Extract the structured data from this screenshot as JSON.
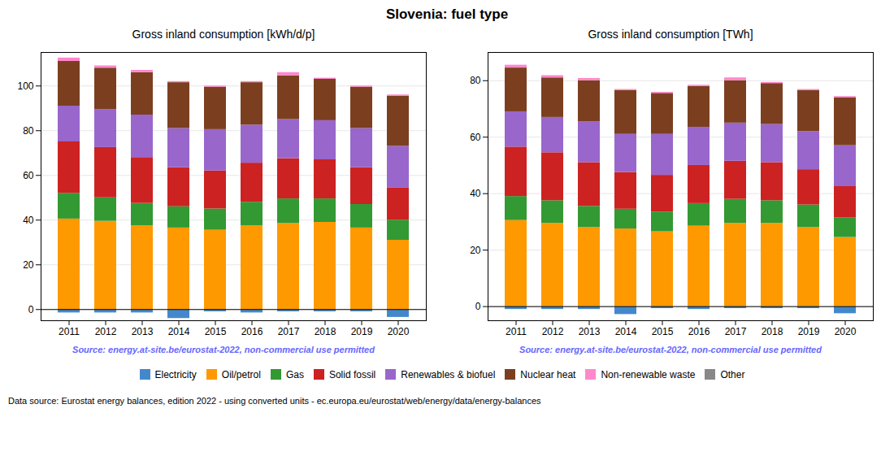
{
  "title": "Slovenia: fuel type",
  "legend": "bottom",
  "annotations": [
    "Data source: Eurostat energy balances, edition 2022 - using converted units - ec.europa.eu/eurostat/web/energy/data/energy-balances"
  ],
  "chart_data": [
    {
      "type": "bar",
      "stacked": true,
      "grid": true,
      "title": "Gross inland consumption [kWh/d/p]",
      "annotations": [
        {
          "text": "Source: energy.at-site.be/eurostat-2022, non-commercial use permitted",
          "color": "#6666ff"
        }
      ],
      "categories": [
        "2011",
        "2012",
        "2013",
        "2014",
        "2015",
        "2016",
        "2017",
        "2018",
        "2019",
        "2020"
      ],
      "ylim": [
        -5,
        115
      ],
      "yticks": [
        0,
        20,
        40,
        60,
        80,
        100
      ],
      "series": [
        {
          "name": "Electricity",
          "color": "#4488cc",
          "values": [
            -1.5,
            -1.5,
            -1.5,
            -4.0,
            -1.0,
            -1.5,
            -1.0,
            -1.0,
            -1.0,
            -3.5
          ]
        },
        {
          "name": "Oil/petrol",
          "color": "#ff9900",
          "values": [
            40.5,
            39.5,
            37.5,
            36.5,
            35.5,
            37.5,
            38.5,
            39.0,
            36.5,
            31.0
          ]
        },
        {
          "name": "Gas",
          "color": "#339933",
          "values": [
            11.5,
            10.5,
            10.0,
            9.5,
            9.5,
            10.5,
            11.0,
            10.5,
            10.5,
            9.0
          ]
        },
        {
          "name": "Solid fossil",
          "color": "#cc2222",
          "values": [
            23.0,
            22.5,
            20.5,
            17.5,
            17.0,
            17.5,
            18.0,
            17.5,
            16.5,
            14.5
          ]
        },
        {
          "name": "Renewables & biofuel",
          "color": "#9966cc",
          "values": [
            16.0,
            17.0,
            19.0,
            17.5,
            18.5,
            17.0,
            17.5,
            17.5,
            17.5,
            18.5
          ]
        },
        {
          "name": "Nuclear heat",
          "color": "#7b3f20",
          "values": [
            20.0,
            18.5,
            19.0,
            20.5,
            19.0,
            19.0,
            19.5,
            18.5,
            18.5,
            22.5
          ]
        },
        {
          "name": "Non-renewable waste",
          "color": "#ff88cc",
          "values": [
            1.5,
            1.0,
            1.0,
            0.5,
            0.5,
            0.5,
            1.5,
            0.5,
            0.5,
            0.5
          ]
        },
        {
          "name": "Other",
          "color": "#888888",
          "values": [
            0.0,
            0.0,
            0.0,
            0.0,
            0.0,
            0.0,
            0.0,
            0.0,
            0.0,
            0.0
          ]
        }
      ]
    },
    {
      "type": "bar",
      "stacked": true,
      "grid": true,
      "title": "Gross inland consumption [TWh]",
      "annotations": [
        {
          "text": "Source: energy.at-site.be/eurostat-2022, non-commercial use permitted",
          "color": "#6666ff"
        }
      ],
      "categories": [
        "2011",
        "2012",
        "2013",
        "2014",
        "2015",
        "2016",
        "2017",
        "2018",
        "2019",
        "2020"
      ],
      "ylim": [
        -5,
        90
      ],
      "yticks": [
        0,
        20,
        40,
        60,
        80
      ],
      "series": [
        {
          "name": "Electricity",
          "color": "#4488cc",
          "values": [
            -1.0,
            -1.0,
            -1.0,
            -2.8,
            -0.7,
            -1.0,
            -0.7,
            -0.7,
            -0.7,
            -2.5
          ]
        },
        {
          "name": "Oil/petrol",
          "color": "#ff9900",
          "values": [
            30.5,
            29.5,
            28.0,
            27.5,
            26.5,
            28.5,
            29.5,
            29.5,
            28.0,
            24.5
          ]
        },
        {
          "name": "Gas",
          "color": "#339933",
          "values": [
            8.5,
            8.0,
            7.5,
            7.0,
            7.0,
            8.0,
            8.5,
            8.0,
            8.0,
            7.0
          ]
        },
        {
          "name": "Solid fossil",
          "color": "#cc2222",
          "values": [
            17.5,
            17.0,
            15.5,
            13.0,
            13.0,
            13.5,
            13.5,
            13.5,
            12.5,
            11.0
          ]
        },
        {
          "name": "Renewables & biofuel",
          "color": "#9966cc",
          "values": [
            12.5,
            12.5,
            14.5,
            13.5,
            14.5,
            13.5,
            13.5,
            13.5,
            13.5,
            14.5
          ]
        },
        {
          "name": "Nuclear heat",
          "color": "#7b3f20",
          "values": [
            15.5,
            14.0,
            14.5,
            15.5,
            14.5,
            14.5,
            15.0,
            14.5,
            14.5,
            17.0
          ]
        },
        {
          "name": "Non-renewable waste",
          "color": "#ff88cc",
          "values": [
            1.0,
            0.8,
            0.8,
            0.4,
            0.4,
            0.4,
            1.0,
            0.4,
            0.4,
            0.4
          ]
        },
        {
          "name": "Other",
          "color": "#888888",
          "values": [
            0.0,
            0.0,
            0.0,
            0.0,
            0.0,
            0.0,
            0.0,
            0.0,
            0.0,
            0.0
          ]
        }
      ]
    }
  ]
}
